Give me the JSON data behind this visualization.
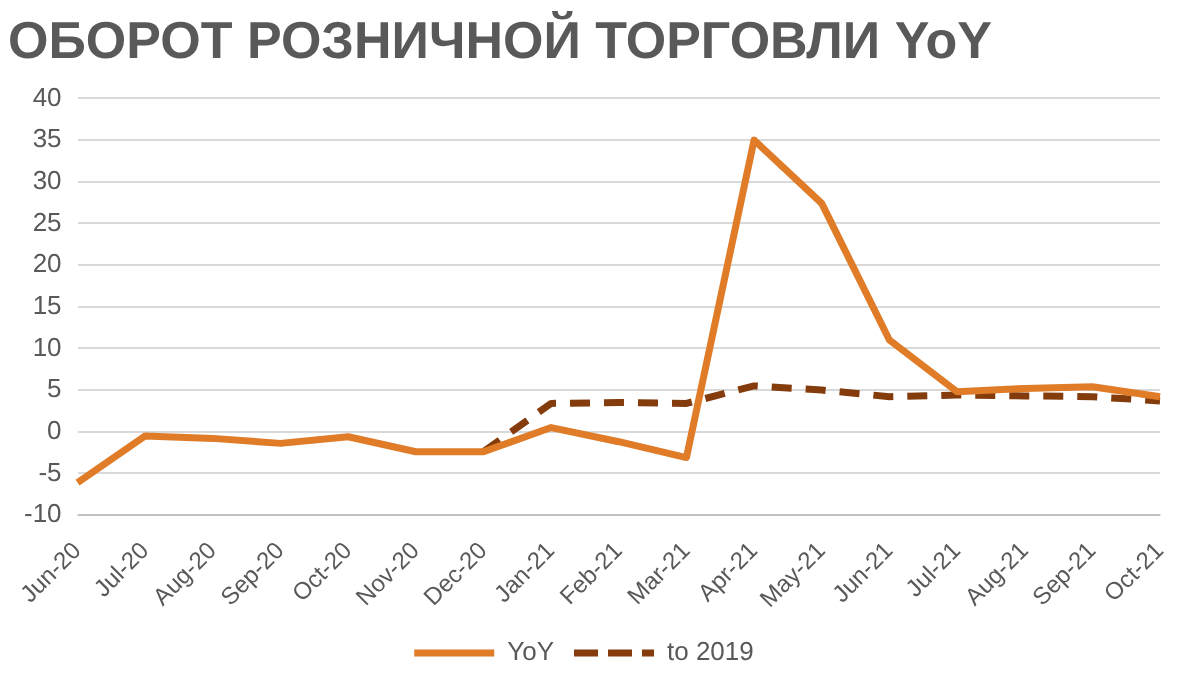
{
  "chart_data": {
    "type": "line",
    "title": "ОБОРОТ РОЗНИЧНОЙ ТОРГОВЛИ YoY",
    "categories": [
      "Jun-20",
      "Jul-20",
      "Aug-20",
      "Sep-20",
      "Oct-20",
      "Nov-20",
      "Dec-20",
      "Jan-21",
      "Feb-21",
      "Mar-21",
      "Apr-21",
      "May-21",
      "Jun-21",
      "Jul-21",
      "Aug-21",
      "Sep-21",
      "Oct-21"
    ],
    "series": [
      {
        "name": "YoY",
        "color": "#e07b28",
        "line_style": "solid",
        "values": [
          -6.1,
          -0.5,
          -0.8,
          -1.4,
          -0.6,
          -2.4,
          -2.4,
          0.5,
          -1.2,
          -3.1,
          35,
          27.4,
          11,
          4.8,
          5.2,
          5.4,
          4.2
        ]
      },
      {
        "name": "to 2019",
        "color": "#843c0c",
        "line_style": "dashed",
        "values": [
          null,
          null,
          null,
          null,
          null,
          null,
          -2.4,
          3.4,
          3.5,
          3.4,
          5.5,
          5,
          4.2,
          4.4,
          4.3,
          4.2,
          3.7
        ]
      }
    ],
    "ylim": [
      -10,
      40
    ],
    "yticks": [
      -10,
      -5,
      0,
      5,
      10,
      15,
      20,
      25,
      30,
      35,
      40
    ],
    "grid": "y",
    "legend": "bottom",
    "marker": "none"
  }
}
